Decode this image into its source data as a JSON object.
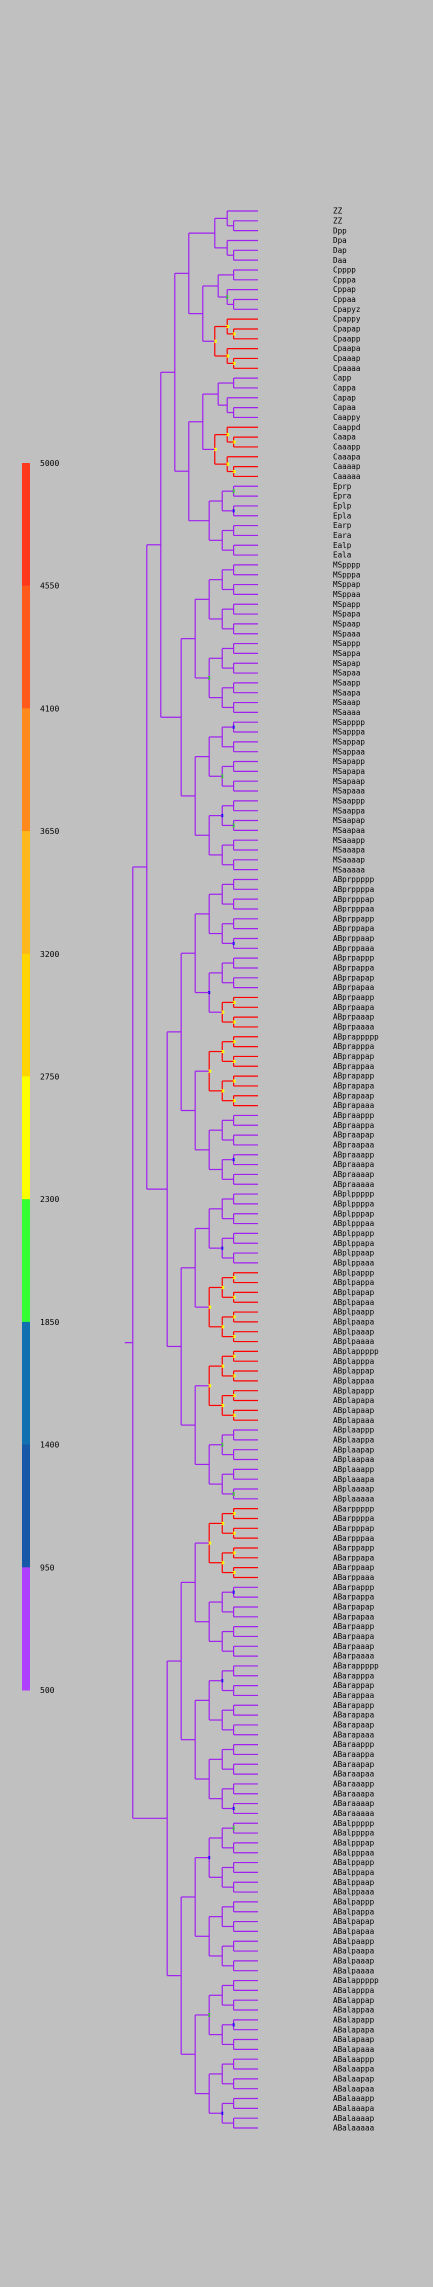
{
  "legend": {
    "ticks": [
      "5000",
      "4550",
      "4100",
      "3650",
      "3200",
      "2750",
      "2300",
      "1850",
      "1400",
      "950",
      "500"
    ],
    "color_bands": [
      "#ff3a1c",
      "#ff5a1c",
      "#ff8a1c",
      "#ffb81c",
      "#ffd400",
      "#ffff00",
      "#33ff33",
      "#1070b0",
      "#1858a8",
      "#b040ff"
    ]
  },
  "tree": {
    "branch_color": "#a020f0",
    "accent_colors": [
      "#ff0000",
      "#ffff00",
      "#33cc33",
      "#0000ff",
      "#ff8800"
    ]
  },
  "labels": [
    "ZZ",
    "ZZ",
    "Dpp",
    "Dpa",
    "Dap",
    "Daa",
    "Cpppp",
    "Cpppa",
    "Cppap",
    "Cppaa",
    "Cpapyz",
    "Cpappy",
    "Cpapap",
    "Cpaapp",
    "Cpaapa",
    "Cpaaap",
    "Cpaaaa",
    "Capp",
    "Cappa",
    "Capap",
    "Capaa",
    "Caappy",
    "Caappd",
    "Caapa",
    "Caaapp",
    "Caaapa",
    "Caaaap",
    "Caaaaa",
    "Eprp",
    "Epra",
    "Eplp",
    "Epla",
    "Earp",
    "Eara",
    "Ealp",
    "Eala",
    "MSpppp",
    "MSpppa",
    "MSppap",
    "MSppaa",
    "MSpapp",
    "MSpapa",
    "MSpaap",
    "MSpaaa",
    "MSappp",
    "MSappa",
    "MSapap",
    "MSapaa",
    "MSaapp",
    "MSaapa",
    "MSaaap",
    "MSaaaa",
    "MSapppp",
    "MSapppa",
    "MSappap",
    "MSappaa",
    "MSapapp",
    "MSapapa",
    "MSapaap",
    "MSapaaa",
    "MSaappp",
    "MSaappa",
    "MSaapap",
    "MSaapaa",
    "MSaaapp",
    "MSaaapa",
    "MSaaaap",
    "MSaaaaa",
    "ABprppppp",
    "ABprppppa",
    "ABprpppap",
    "ABprpppaa",
    "ABprppapp",
    "ABprppapa",
    "ABprppaap",
    "ABprppaaa",
    "ABprpappp",
    "ABprpappa",
    "ABprpapap",
    "ABprpapaa",
    "ABprpaapp",
    "ABprpaapa",
    "ABprpaaap",
    "ABprpaaaa",
    "ABprappppp",
    "ABprapppa",
    "ABprappap",
    "ABprappaa",
    "ABprapapp",
    "ABprapapa",
    "ABprapaap",
    "ABprapaaa",
    "ABpraappp",
    "ABpraappa",
    "ABpraapap",
    "ABpraapaa",
    "ABpraaapp",
    "ABpraaapa",
    "ABpraaaap",
    "ABpraaaaa",
    "ABplppppp",
    "ABplppppa",
    "ABplpppap",
    "ABplpppaa",
    "ABplppapp",
    "ABplppapa",
    "ABplppaap",
    "ABplppaaa",
    "ABplpappp",
    "ABplpappa",
    "ABplpapap",
    "ABplpapaa",
    "ABplpaapp",
    "ABplpaapa",
    "ABplpaaap",
    "ABplpaaaa",
    "ABplappppp",
    "ABplapppa",
    "ABplappap",
    "ABplappaa",
    "ABplapapp",
    "ABplapapa",
    "ABplapaap",
    "ABplapaaa",
    "ABplaappp",
    "ABplaappa",
    "ABplaapap",
    "ABplaapaa",
    "ABplaaapp",
    "ABplaaapa",
    "ABplaaaap",
    "ABplaaaaa",
    "ABarppppp",
    "ABarppppa",
    "ABarpppap",
    "ABarpppaa",
    "ABarppapp",
    "ABarppapa",
    "ABarppaap",
    "ABarppaaa",
    "ABarpappp",
    "ABarpappa",
    "ABarpapap",
    "ABarpapaa",
    "ABarpaapp",
    "ABarpaapa",
    "ABarpaaap",
    "ABarpaaaa",
    "ABarappppp",
    "ABarapppa",
    "ABarappap",
    "ABarappaa",
    "ABarapapp",
    "ABarapapa",
    "ABarapaap",
    "ABarapaaa",
    "ABaraappp",
    "ABaraappa",
    "ABaraapap",
    "ABaraapaa",
    "ABaraaapp",
    "ABaraaapa",
    "ABaraaaap",
    "ABaraaaaa",
    "ABalppppp",
    "ABalppppa",
    "ABalpppap",
    "ABalpppaa",
    "ABalppapp",
    "ABalppapa",
    "ABalppaap",
    "ABalppaaa",
    "ABalpappp",
    "ABalpappa",
    "ABalpapap",
    "ABalpapaa",
    "ABalpaapp",
    "ABalpaapa",
    "ABalpaaap",
    "ABalpaaaa",
    "ABalappppp",
    "ABalapppa",
    "ABalappap",
    "ABalappaa",
    "ABalapapp",
    "ABalapapa",
    "ABalapaap",
    "ABalapaaa",
    "ABalaappp",
    "ABalaappa",
    "ABalaapap",
    "ABalaapaa",
    "ABalaaapp",
    "ABalaaapa",
    "ABalaaaap",
    "ABalaaaaa"
  ]
}
